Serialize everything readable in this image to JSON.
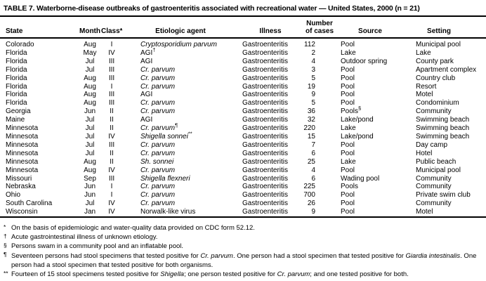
{
  "title": "TABLE 7. Waterborne-disease outbreaks of gastroenteritis associated with recreational water — United States, 2000 (n = 21)",
  "colors": {
    "text": "#000000",
    "background": "#ffffff",
    "rule": "#000000"
  },
  "table": {
    "columns": [
      {
        "key": "state",
        "label": "State"
      },
      {
        "key": "month",
        "label": "Month"
      },
      {
        "key": "class",
        "label": "Class*"
      },
      {
        "key": "agent",
        "label": "Etiologic agent"
      },
      {
        "key": "illness",
        "label": "Illness"
      },
      {
        "key": "cases",
        "label": "Number\nof cases"
      },
      {
        "key": "source",
        "label": "Source"
      },
      {
        "key": "setting",
        "label": "Setting"
      }
    ],
    "rows": [
      {
        "state": "Colorado",
        "month": "Aug",
        "class": "I",
        "agent": {
          "text": "Cryptosporidium parvum",
          "italic": true
        },
        "illness": "Gastroenteritis",
        "cases": "112",
        "source": "Pool",
        "setting": "Municipal pool"
      },
      {
        "state": "Florida",
        "month": "May",
        "class": "IV",
        "agent": {
          "text": "AGI",
          "italic": false,
          "sup": "†"
        },
        "illness": "Gastroenteritis",
        "cases": "2",
        "source": "Lake",
        "setting": "Lake"
      },
      {
        "state": "Florida",
        "month": "Jul",
        "class": "III",
        "agent": {
          "text": "AGI",
          "italic": false
        },
        "illness": "Gastroenteritis",
        "cases": "4",
        "source": "Outdoor spring",
        "setting": "County park"
      },
      {
        "state": "Florida",
        "month": "Jul",
        "class": "III",
        "agent": {
          "text": "Cr. parvum",
          "italic": true
        },
        "illness": "Gastroenteritis",
        "cases": "3",
        "source": "Pool",
        "setting": "Apartment complex"
      },
      {
        "state": "Florida",
        "month": "Aug",
        "class": "III",
        "agent": {
          "text": "Cr. parvum",
          "italic": true
        },
        "illness": "Gastroenteritis",
        "cases": "5",
        "source": "Pool",
        "setting": "Country club"
      },
      {
        "state": "Florida",
        "month": "Aug",
        "class": "I",
        "agent": {
          "text": "Cr. parvum",
          "italic": true
        },
        "illness": "Gastroenteritis",
        "cases": "19",
        "source": "Pool",
        "setting": "Resort"
      },
      {
        "state": "Florida",
        "month": "Aug",
        "class": "III",
        "agent": {
          "text": "AGI",
          "italic": false
        },
        "illness": "Gastroenteritis",
        "cases": "9",
        "source": "Pool",
        "setting": "Motel"
      },
      {
        "state": "Florida",
        "month": "Aug",
        "class": "III",
        "agent": {
          "text": "Cr. parvum",
          "italic": true
        },
        "illness": "Gastroenteritis",
        "cases": "5",
        "source": "Pool",
        "setting": "Condominium"
      },
      {
        "state": "Georgia",
        "month": "Jun",
        "class": "II",
        "agent": {
          "text": "Cr. parvum",
          "italic": true
        },
        "illness": "Gastroenteritis",
        "cases": "36",
        "source": {
          "text": "Pools",
          "sup": "§"
        },
        "setting": "Community"
      },
      {
        "state": "Maine",
        "month": "Jul",
        "class": "II",
        "agent": {
          "text": "AGI",
          "italic": false
        },
        "illness": "Gastroenteritis",
        "cases": "32",
        "source": "Lake/pond",
        "setting": "Swimming beach"
      },
      {
        "state": "Minnesota",
        "month": "Jul",
        "class": "II",
        "agent": {
          "text": "Cr. parvum",
          "italic": true,
          "sup": "¶"
        },
        "illness": "Gastroenteritis",
        "cases": "220",
        "source": "Lake",
        "setting": "Swimming beach"
      },
      {
        "state": "Minnesota",
        "month": "Jul",
        "class": "IV",
        "agent": {
          "text": "Shigella sonnei",
          "italic": true,
          "sup": "**"
        },
        "illness": "Gastroenteritis",
        "cases": "15",
        "source": "Lake/pond",
        "setting": "Swimming beach"
      },
      {
        "state": "Minnesota",
        "month": "Jul",
        "class": "III",
        "agent": {
          "text": "Cr. parvum",
          "italic": true
        },
        "illness": "Gastroenteritis",
        "cases": "7",
        "source": "Pool",
        "setting": "Day camp"
      },
      {
        "state": "Minnesota",
        "month": "Jul",
        "class": "II",
        "agent": {
          "text": "Cr. parvum",
          "italic": true
        },
        "illness": "Gastroenteritis",
        "cases": "6",
        "source": "Pool",
        "setting": "Hotel"
      },
      {
        "state": "Minnesota",
        "month": "Aug",
        "class": "II",
        "agent": {
          "text": "Sh. sonnei",
          "italic": true
        },
        "illness": "Gastroenteritis",
        "cases": "25",
        "source": "Lake",
        "setting": "Public beach"
      },
      {
        "state": "Minnesota",
        "month": "Aug",
        "class": "IV",
        "agent": {
          "text": "Cr. parvum",
          "italic": true
        },
        "illness": "Gastroenteritis",
        "cases": "4",
        "source": "Pool",
        "setting": "Municipal pool"
      },
      {
        "state": "Missouri",
        "month": "Sep",
        "class": "III",
        "agent": {
          "text": "Shigella flexneri",
          "italic": true
        },
        "illness": "Gastroenteritis",
        "cases": "6",
        "source": "Wading pool",
        "setting": "Community"
      },
      {
        "state": "Nebraska",
        "month": "Jun",
        "class": "I",
        "agent": {
          "text": "Cr. parvum",
          "italic": true
        },
        "illness": "Gastroenteritis",
        "cases": "225",
        "source": "Pools",
        "setting": "Community"
      },
      {
        "state": "Ohio",
        "month": "Jun",
        "class": "I",
        "agent": {
          "text": "Cr. parvum",
          "italic": true
        },
        "illness": "Gastroenteritis",
        "cases": "700",
        "source": "Pool",
        "setting": "Private swim club"
      },
      {
        "state": "South Carolina",
        "month": "Jul",
        "class": "IV",
        "agent": {
          "text": "Cr. parvum",
          "italic": true
        },
        "illness": "Gastroenteritis",
        "cases": "26",
        "source": "Pool",
        "setting": "Community"
      },
      {
        "state": "Wisconsin",
        "month": "Jan",
        "class": "IV",
        "agent": {
          "text": "Norwalk-like virus",
          "italic": false
        },
        "illness": "Gastroenteritis",
        "cases": "9",
        "source": "Pool",
        "setting": "Motel"
      }
    ]
  },
  "footnotes": [
    {
      "marker": "*",
      "parts": [
        {
          "text": "On the basis of epidemiologic and water-quality data provided on CDC form 52.12."
        }
      ]
    },
    {
      "marker": "†",
      "parts": [
        {
          "text": "Acute gastrointestinal illness of unknown etiology."
        }
      ]
    },
    {
      "marker": "§",
      "parts": [
        {
          "text": "Persons swam in a community pool and an inflatable pool."
        }
      ]
    },
    {
      "marker": "¶",
      "parts": [
        {
          "text": "Seventeen persons had stool specimens that tested positive for "
        },
        {
          "text": "Cr. parvum",
          "italic": true
        },
        {
          "text": ". One person had a stool specimen that tested positive for "
        },
        {
          "text": "Giardia intestinalis",
          "italic": true
        },
        {
          "text": ". One person had a stool specimen that tested positive for both organisms."
        }
      ]
    },
    {
      "marker": "**",
      "parts": [
        {
          "text": "Fourteen of 15 stool specimens tested positive for "
        },
        {
          "text": "Shigella",
          "italic": true
        },
        {
          "text": "; one person tested positive for "
        },
        {
          "text": "Cr. parvum",
          "italic": true
        },
        {
          "text": "; and one tested positive for both."
        }
      ]
    }
  ]
}
